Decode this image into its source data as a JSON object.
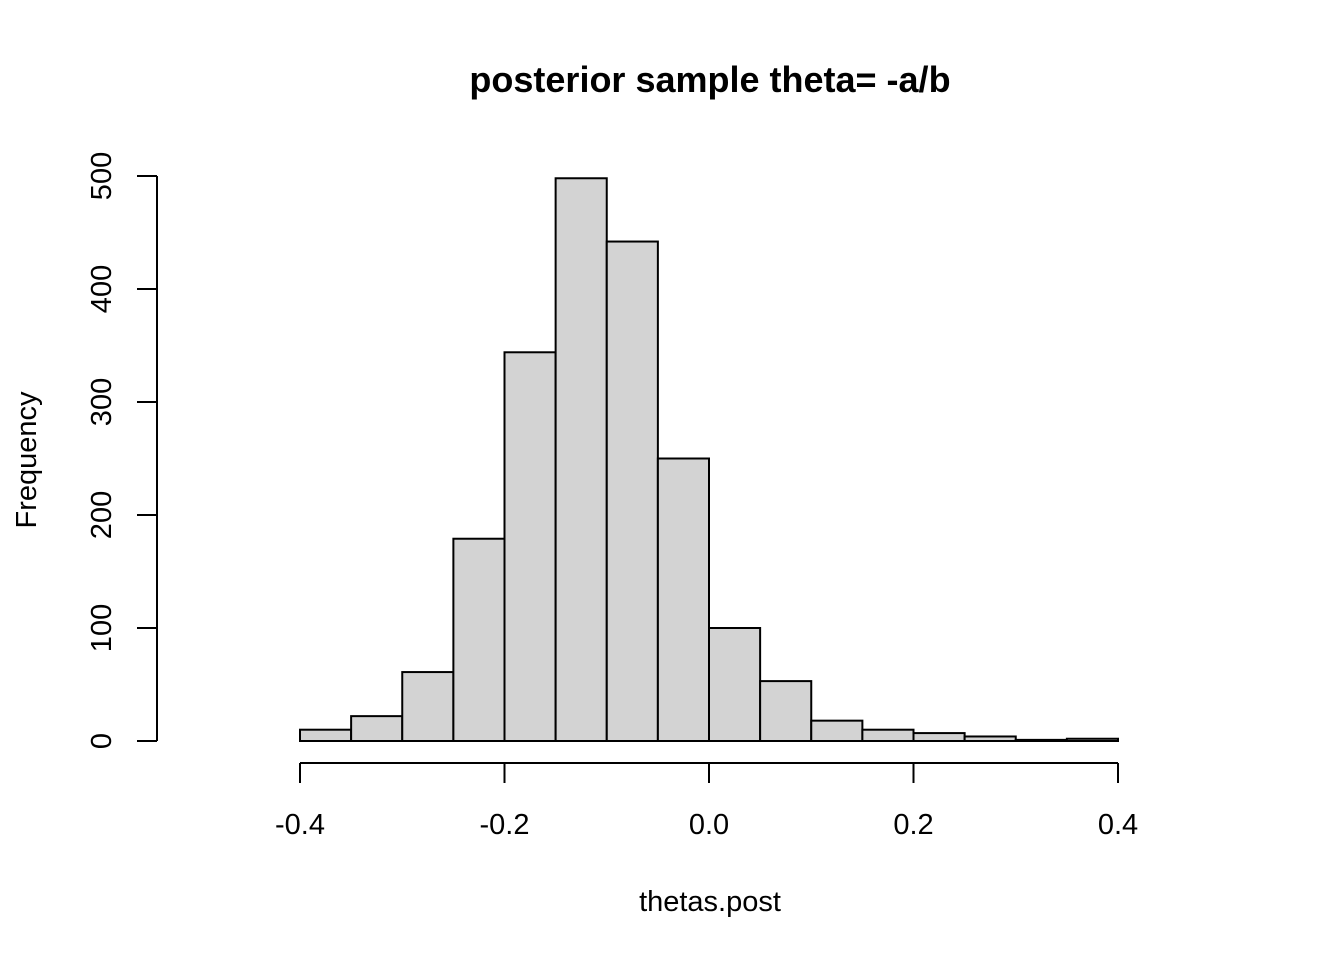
{
  "chart_data": {
    "type": "bar",
    "title": "posterior sample theta= -a/b",
    "xlabel": "thetas.post",
    "ylabel": "Frequency",
    "bin_edges": [
      -0.4,
      -0.35,
      -0.3,
      -0.25,
      -0.2,
      -0.15,
      -0.1,
      -0.05,
      0.0,
      0.05,
      0.1,
      0.15,
      0.2,
      0.25,
      0.3,
      0.35,
      0.4
    ],
    "values": [
      10,
      22,
      61,
      179,
      344,
      498,
      442,
      250,
      100,
      53,
      18,
      10,
      7,
      4,
      1,
      2
    ],
    "xlim": [
      -0.4,
      0.4
    ],
    "ylim": [
      0,
      500
    ],
    "x_ticks": [
      -0.4,
      -0.2,
      0.0,
      0.2,
      0.4
    ],
    "x_tick_labels": [
      "-0.4",
      "-0.2",
      "0.0",
      "0.2",
      "0.4"
    ],
    "y_ticks": [
      0,
      100,
      200,
      300,
      400,
      500
    ],
    "y_tick_labels": [
      "0",
      "100",
      "200",
      "300",
      "400",
      "500"
    ],
    "bar_fill": "#d3d3d3",
    "bar_edge": "#000000",
    "grid": false,
    "legend": "none"
  }
}
